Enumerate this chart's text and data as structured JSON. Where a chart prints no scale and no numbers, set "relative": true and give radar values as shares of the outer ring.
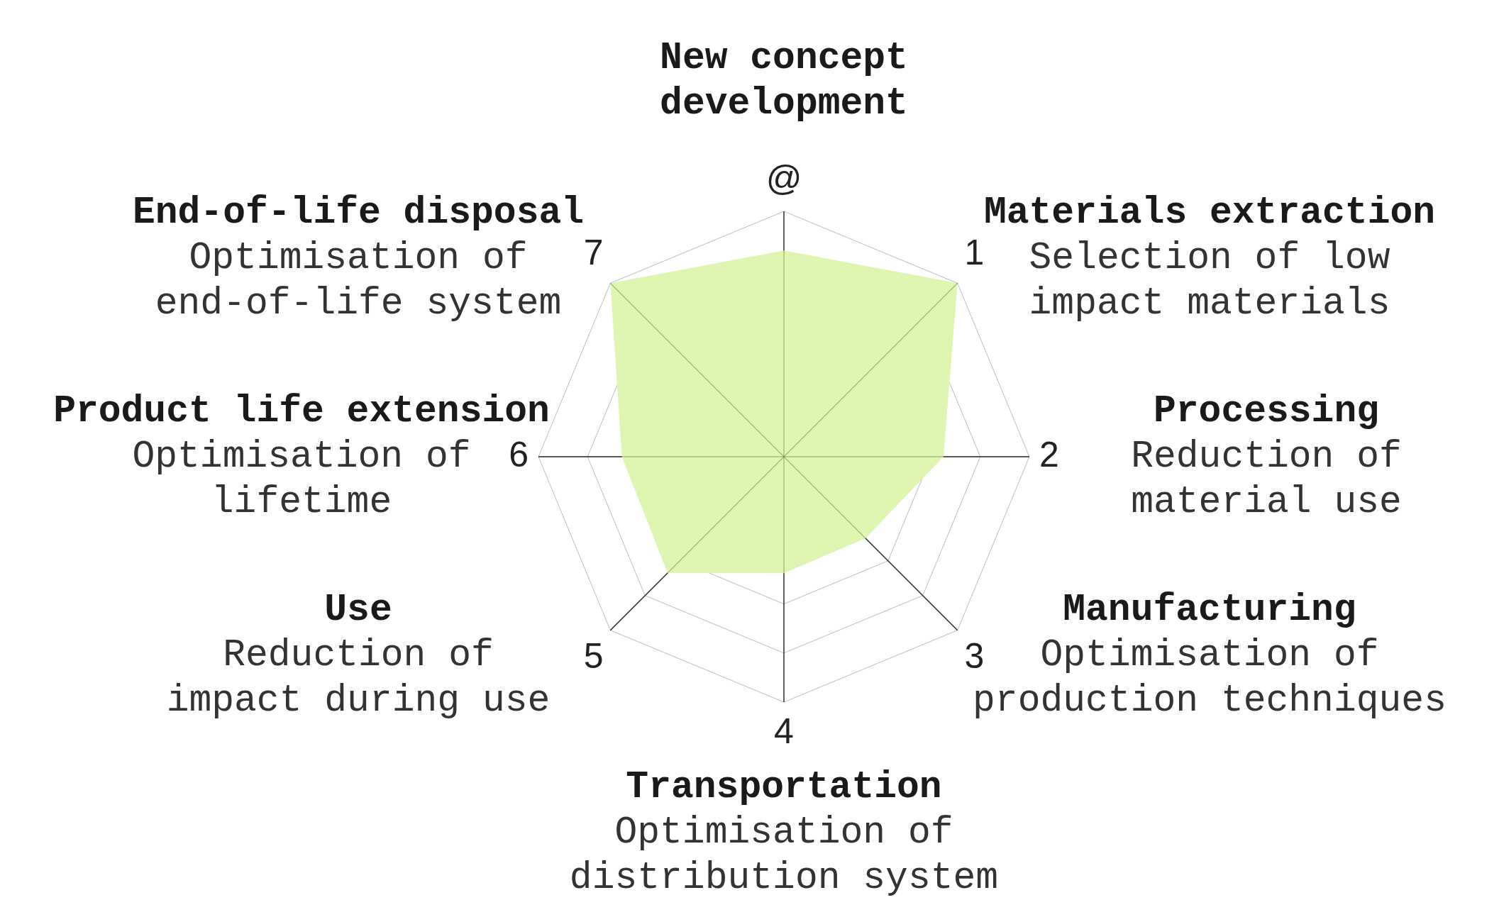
{
  "chart_data": {
    "type": "radar",
    "relative": true,
    "grid": true,
    "categories": [
      "@",
      "1",
      "2",
      "3",
      "4",
      "5",
      "6",
      "7"
    ],
    "series": [
      {
        "color": "#dff5b2",
        "values": [
          0.84,
          1,
          0.65,
          0.47,
          0.475,
          0.67,
          0.66,
          1
        ]
      }
    ],
    "annotations": [
      {
        "text": "New concept\ndevelopment",
        "x": "@"
      },
      {
        "text": "Materials extraction",
        "x": "1"
      },
      {
        "text": "Selection of low\nimpact materials",
        "x": "1"
      },
      {
        "text": "Processing",
        "x": "2"
      },
      {
        "text": "Reduction of\nmaterial use",
        "x": "2"
      },
      {
        "text": "Manufacturing",
        "x": "3"
      },
      {
        "text": "Optimisation of\nproduction techniques",
        "x": "3"
      },
      {
        "text": "Transportation",
        "x": "4"
      },
      {
        "text": "Optimisation of\ndistribution system",
        "x": "4"
      },
      {
        "text": "Use",
        "x": "5"
      },
      {
        "text": "Reduction of\nimpact during use",
        "x": "5"
      },
      {
        "text": "Product life extension",
        "x": "6"
      },
      {
        "text": "Optimisation of\nlifetime",
        "x": "6"
      },
      {
        "text": "End-of-life disposal",
        "x": "7"
      },
      {
        "text": "Optimisation of\nend-of-life system",
        "x": "7"
      }
    ]
  }
}
